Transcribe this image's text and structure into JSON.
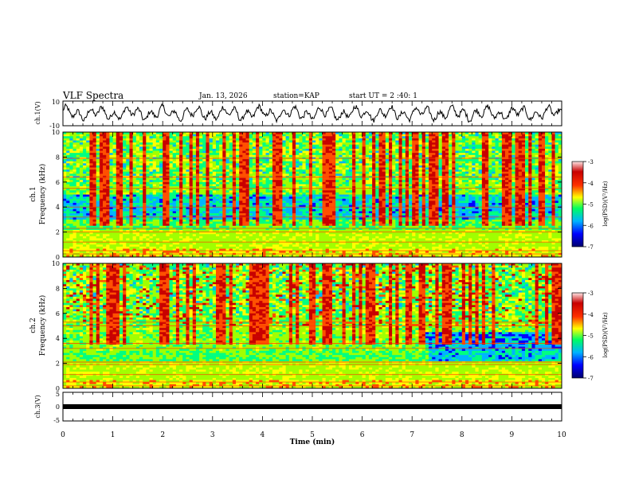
{
  "header": {
    "title": "VLF Spectra",
    "date": "Jan. 13, 2026",
    "station": "station=KAP",
    "start_ut": "start UT = 2 :40: 1"
  },
  "chart_data": [
    {
      "type": "line",
      "panel": "ch1-waveform",
      "ylabel": "ch.1(V)",
      "ylim": [
        -10,
        10
      ],
      "yticks": [
        "10",
        "-10"
      ],
      "xlim": [
        0,
        10
      ],
      "grid": false
    },
    {
      "type": "heatmap",
      "panel": "ch1-spectrogram",
      "ylabel": "ch.1 Frequency (kHz)",
      "ylabel_lines": [
        "ch.1",
        "Frequency (kHz)"
      ],
      "ylim": [
        0,
        10
      ],
      "yticks": [
        "0",
        "2",
        "4",
        "6",
        "8",
        "10"
      ],
      "xlim": [
        0,
        10
      ],
      "colorbar": {
        "label": "log(PSD)(V²/Hz)",
        "range": [
          -7,
          -3
        ],
        "ticks": [
          "-3",
          "-4",
          "-5",
          "-6",
          "-7"
        ]
      }
    },
    {
      "type": "heatmap",
      "panel": "ch2-spectrogram",
      "ylabel": "ch.2 Frequency (kHz)",
      "ylabel_lines": [
        "ch.2",
        "Frequency (kHz)"
      ],
      "ylim": [
        0,
        10
      ],
      "yticks": [
        "0",
        "2",
        "4",
        "6",
        "8",
        "10"
      ],
      "xlim": [
        0,
        10
      ],
      "colorbar": {
        "label": "log(PSD)(V²/Hz)",
        "range": [
          -7,
          -3
        ],
        "ticks": [
          "-3",
          "-4",
          "-5",
          "-6",
          "-7"
        ]
      }
    },
    {
      "type": "line",
      "panel": "ch3-waveform",
      "ylabel": "ch.3(V)",
      "ylim": [
        -5,
        5
      ],
      "yticks": [
        "5",
        "0",
        "-5"
      ],
      "xlim": [
        0,
        10
      ],
      "xlabel": "Time (min)",
      "xticks": [
        "0",
        "1",
        "2",
        "3",
        "4",
        "5",
        "6",
        "7",
        "8",
        "9",
        "10"
      ],
      "grid": false
    }
  ],
  "colors": {
    "ink": "#000000",
    "colormap": [
      "#00006e",
      "#0000ff",
      "#00b4ff",
      "#00ff80",
      "#a0ff00",
      "#ffff00",
      "#ff5000",
      "#c80000",
      "#ffe6e6"
    ]
  }
}
